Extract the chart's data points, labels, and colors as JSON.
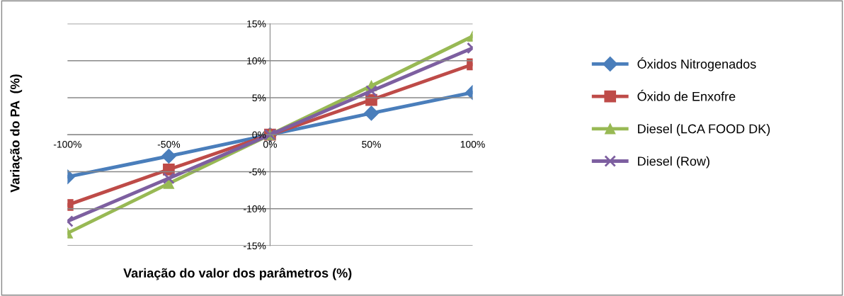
{
  "chart_data": {
    "type": "line",
    "xlabel": "Variação do valor dos parâmetros (%)",
    "ylabel": "Variação do PA  (%)",
    "categories": [
      "-100%",
      "-50%",
      "0%",
      "50%",
      "100%"
    ],
    "series": [
      {
        "name": "Óxidos Nitrogenados",
        "color": "#4a7ebb",
        "marker": "diamond",
        "values": [
          -5.7,
          -2.9,
          0,
          2.9,
          5.7
        ]
      },
      {
        "name": "Óxido de Enxofre",
        "color": "#be4b48",
        "marker": "square",
        "values": [
          -9.5,
          -4.7,
          0,
          4.7,
          9.5
        ]
      },
      {
        "name": "Diesel (LCA FOOD DK)",
        "color": "#98b954",
        "marker": "triangle",
        "values": [
          -13.3,
          -6.6,
          0,
          6.6,
          13.3
        ]
      },
      {
        "name": "Diesel (Row)",
        "color": "#7d5fa0",
        "marker": "cross",
        "values": [
          -11.7,
          -5.9,
          0,
          5.9,
          11.7
        ]
      }
    ],
    "ylim": [
      -15,
      15
    ],
    "yticks": [
      {
        "value": -15,
        "label": "-15%"
      },
      {
        "value": -10,
        "label": "-10%"
      },
      {
        "value": -5,
        "label": "-5%"
      },
      {
        "value": 0,
        "label": "0%"
      },
      {
        "value": 5,
        "label": "5%"
      },
      {
        "value": 10,
        "label": "10%"
      },
      {
        "value": 15,
        "label": "15%"
      }
    ],
    "grid": "y",
    "legend": "right",
    "line_style": "solid"
  }
}
